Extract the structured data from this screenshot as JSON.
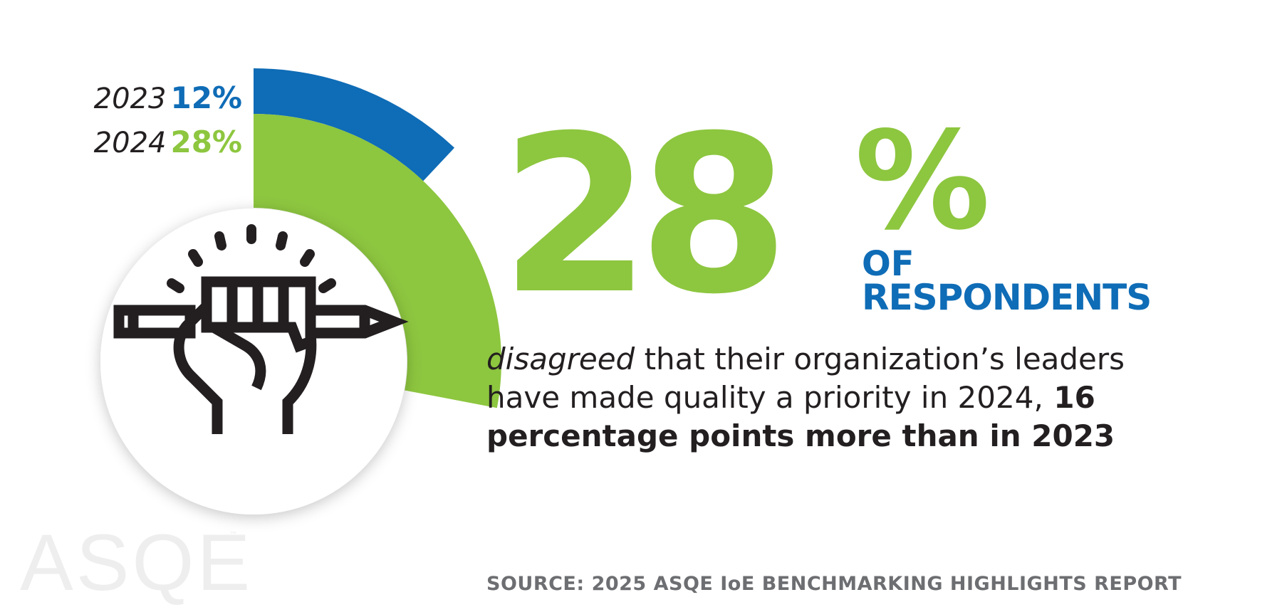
{
  "colors": {
    "series_2023": "#0f6cb6",
    "series_2024": "#8dc63f",
    "text_dark": "#231f20",
    "source_gray": "#6d6e71",
    "watermark": "#eeeeee"
  },
  "chart_data": {
    "type": "radial-bar",
    "series": [
      {
        "name": "2023",
        "value": 12,
        "label": "12%"
      },
      {
        "name": "2024",
        "value": 28,
        "label": "28%"
      }
    ],
    "max": 100,
    "unit": "%",
    "legend_position": "left"
  },
  "headline": {
    "number": "28",
    "percent_sign": "%",
    "of": "OF",
    "respondents": "RESPONDENTS"
  },
  "description": {
    "emphasis": "disagreed",
    "part1": " that their organization’s leaders have made quality a priority in 2024,",
    "part2": " 16 percentage points more than in 2023"
  },
  "source": "SOURCE: 2025 ASQE IoE BENCHMARKING HIGHLIGHTS REPORT",
  "watermark": {
    "text": "ASQE",
    "tm": "™"
  },
  "icon": "fist-holding-pencil-icon"
}
